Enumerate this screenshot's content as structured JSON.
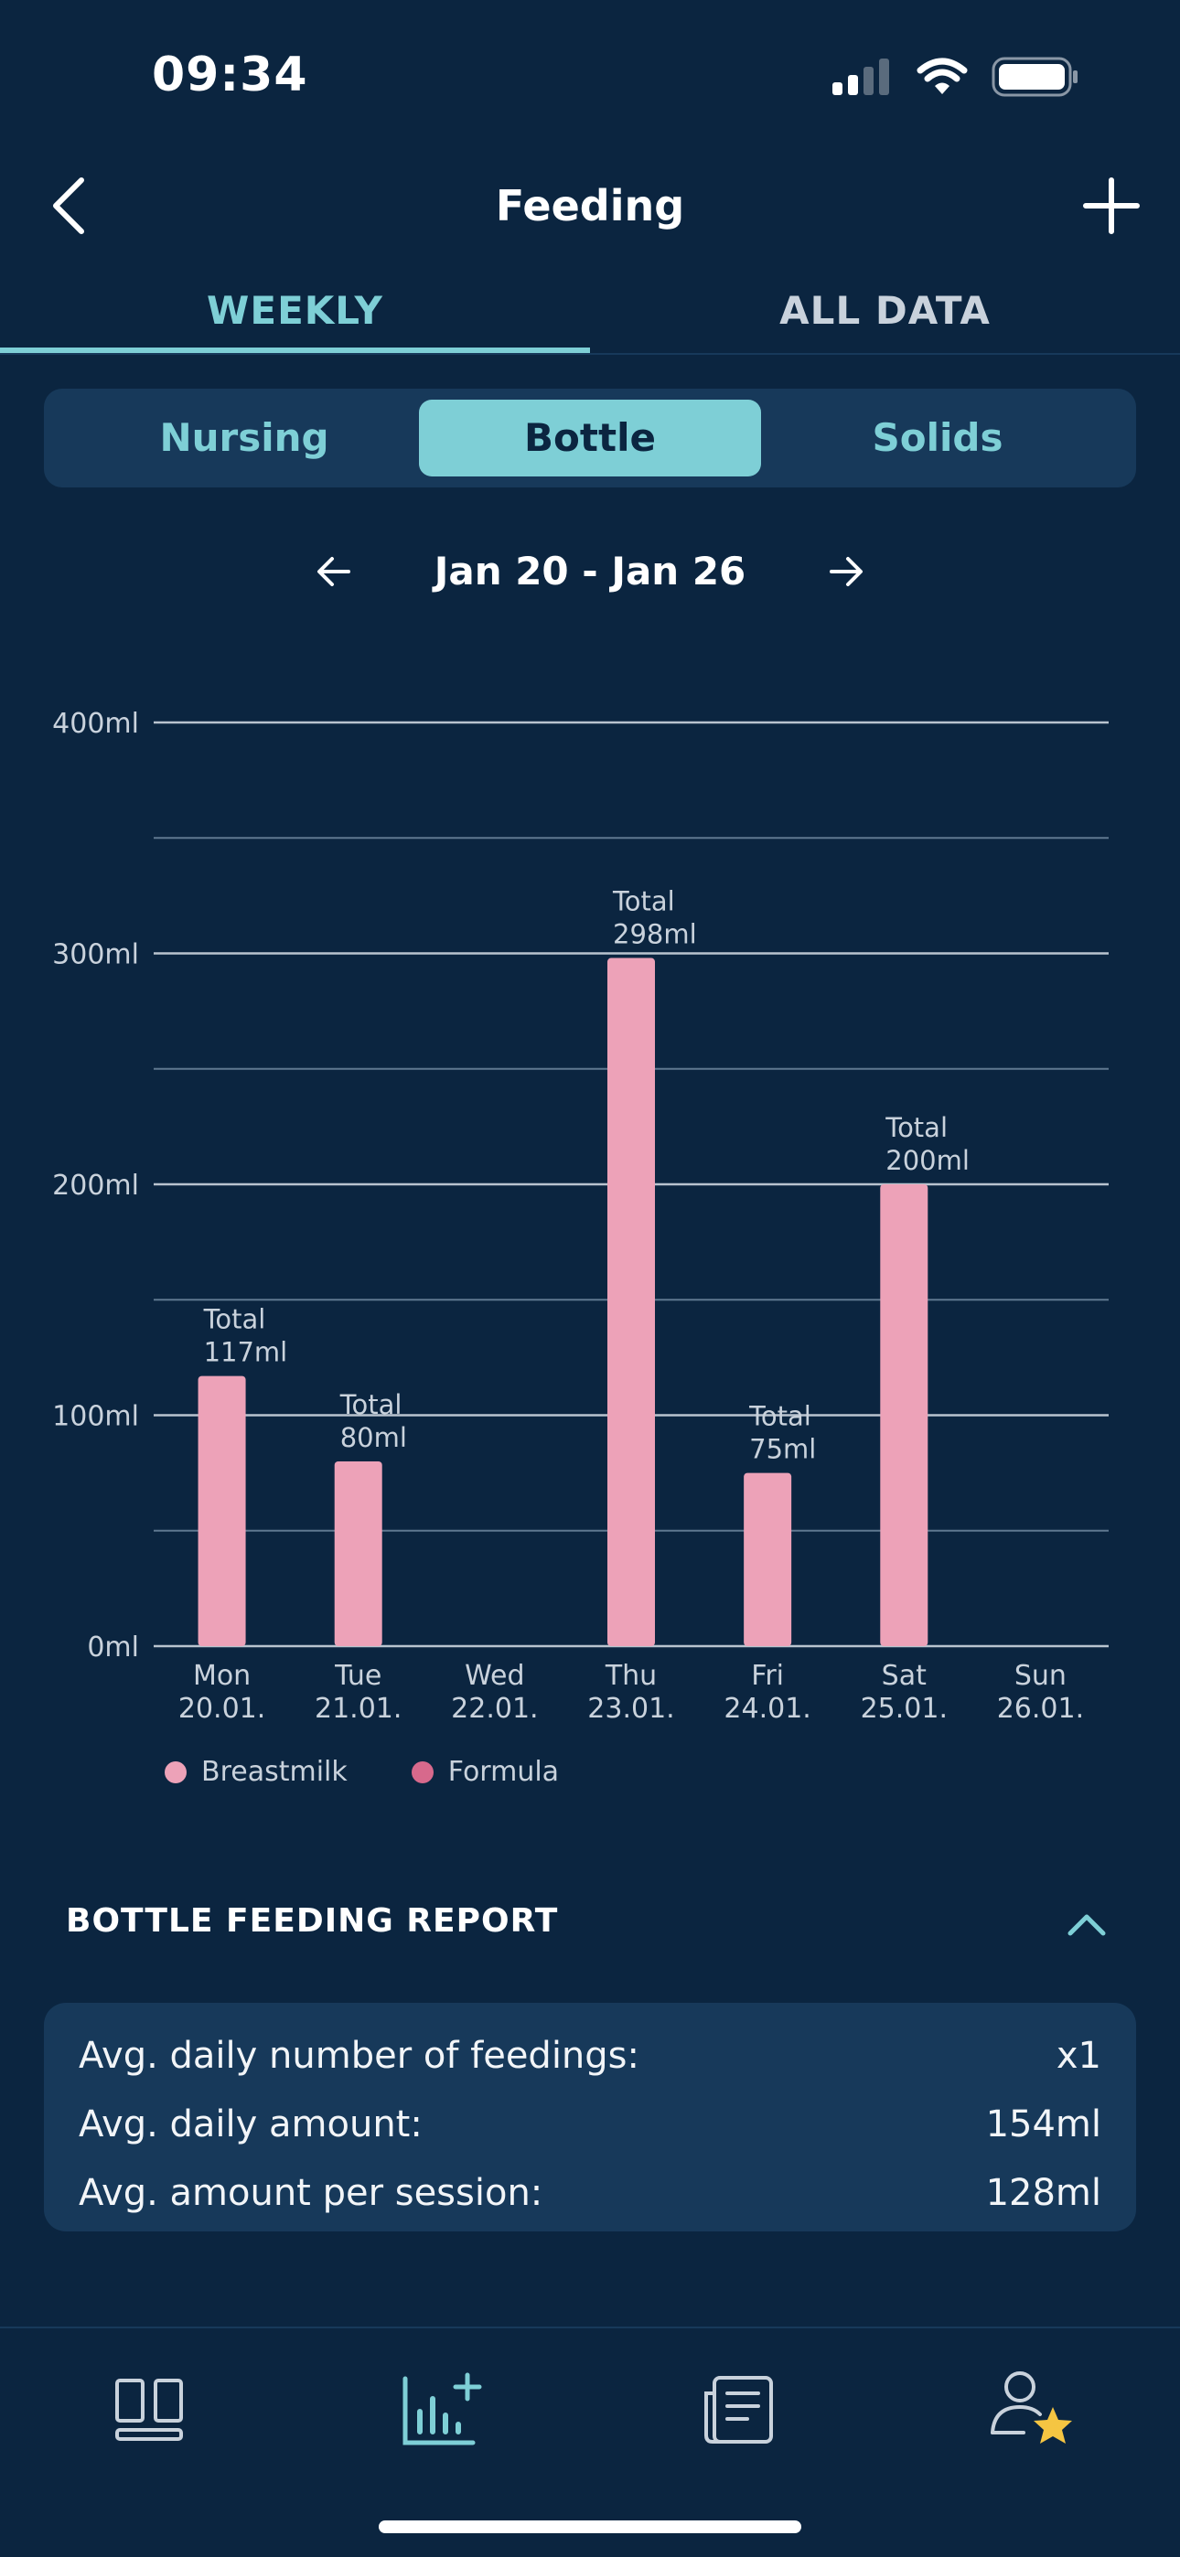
{
  "status_bar": {
    "time": "09:34"
  },
  "header": {
    "title": "Feeding"
  },
  "tabs": [
    {
      "label": "WEEKLY",
      "active": true
    },
    {
      "label": "ALL DATA",
      "active": false
    }
  ],
  "segments": [
    {
      "label": "Nursing",
      "active": false
    },
    {
      "label": "Bottle",
      "active": true
    },
    {
      "label": "Solids",
      "active": false
    }
  ],
  "week": {
    "label": "Jan 20 - Jan 26"
  },
  "chart_data": {
    "type": "bar",
    "categories": [
      "Mon",
      "Tue",
      "Wed",
      "Thu",
      "Fri",
      "Sat",
      "Sun"
    ],
    "dates": [
      "20.01.",
      "21.01.",
      "22.01.",
      "23.01.",
      "24.01.",
      "25.01.",
      "26.01."
    ],
    "series": [
      {
        "name": "Breastmilk",
        "color": "#EDA2B8",
        "values": [
          117,
          80,
          0,
          298,
          75,
          200,
          0
        ]
      },
      {
        "name": "Formula",
        "color": "#D7698C",
        "values": [
          0,
          0,
          0,
          0,
          0,
          0,
          0
        ]
      }
    ],
    "totals": [
      117,
      80,
      0,
      298,
      75,
      200,
      0
    ],
    "total_label_prefix": "Total",
    "unit": "ml",
    "y_ticks": [
      0,
      100,
      200,
      300,
      400
    ],
    "ylim": [
      0,
      400
    ],
    "grid": true,
    "legend_position": "bottom"
  },
  "legend": [
    {
      "label": "Breastmilk",
      "color": "#EDA2B8"
    },
    {
      "label": "Formula",
      "color": "#D7698C"
    }
  ],
  "report": {
    "title": "BOTTLE FEEDING REPORT",
    "rows": [
      {
        "label": "Avg. daily number of feedings:",
        "value": "x1"
      },
      {
        "label": "Avg. daily amount:",
        "value": "154ml"
      },
      {
        "label": "Avg. amount per session:",
        "value": "128ml"
      }
    ]
  },
  "colors": {
    "background": "#0B2540",
    "card": "#17395A",
    "accent": "#7ECFD6"
  },
  "bottom_nav": [
    {
      "icon": "dashboard-icon"
    },
    {
      "icon": "chart-add-icon",
      "active": true
    },
    {
      "icon": "journal-icon"
    },
    {
      "icon": "profile-star-icon"
    }
  ]
}
